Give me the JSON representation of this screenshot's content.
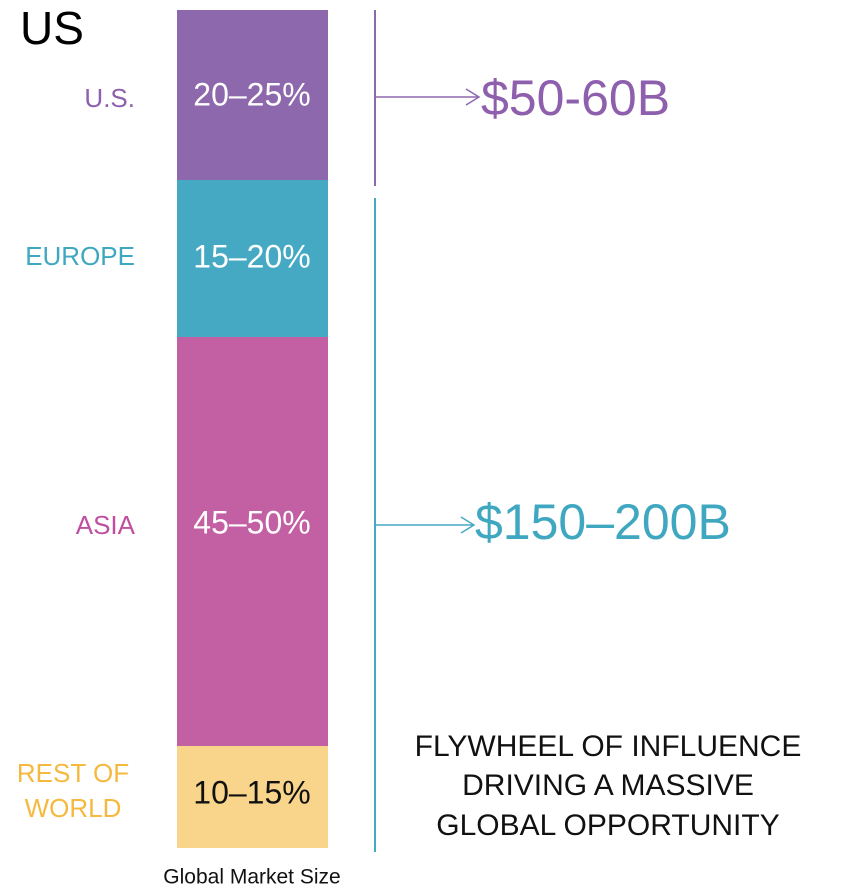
{
  "title": "US",
  "segments": [
    {
      "region": [
        "U.S."
      ],
      "share": "20–25%"
    },
    {
      "region": [
        "EUROPE"
      ],
      "share": "15–20%"
    },
    {
      "region": [
        "ASIA"
      ],
      "share": "45–50%"
    },
    {
      "region": [
        "REST OF",
        "WORLD"
      ],
      "share": "10–15%"
    }
  ],
  "callouts": [
    "$50-60B",
    "$150–200B"
  ],
  "tagline": [
    "FLYWHEEL OF INFLUENCE",
    "DRIVING A MASSIVE",
    "GLOBAL OPPORTUNITY"
  ],
  "bar_label": "Global Market Size"
}
